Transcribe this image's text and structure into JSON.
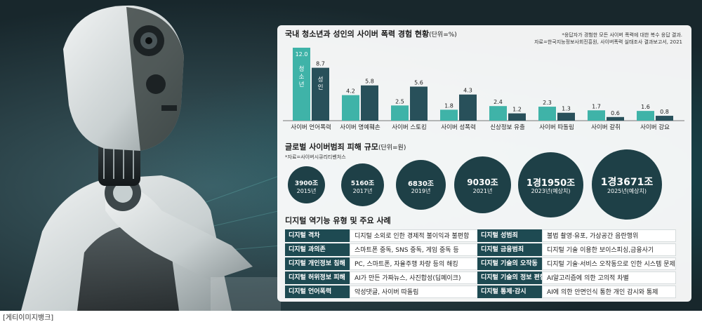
{
  "credit": "[게티이미지뱅크]",
  "colors": {
    "teen": "#3fb3a8",
    "adult": "#28505a",
    "circle": "#1e4047",
    "table_key": "#1e4a52"
  },
  "section1": {
    "title": "국내 청소년과 성인의 사이버 폭력 경험 현황",
    "unit": "(단위=%)",
    "note1": "*응답자가 경험한 모든 사이버 폭력에 대한 복수 응답 결과.",
    "note2": "자료=한국지능정보사회진흥원, 사이버폭력 실태조사 결과보고서, 2021"
  },
  "chart_data": [
    {
      "type": "bar",
      "title": "국내 청소년과 성인의 사이버 폭력 경험 현황",
      "unit": "(단위=%)",
      "categories": [
        "사이버 언어폭력",
        "사이버 명예훼손",
        "사이버 스토킹",
        "사이버 성폭력",
        "신상정보 유출",
        "사이버 따돌림",
        "사이버 갈취",
        "사이버 강요"
      ],
      "series": [
        {
          "name": "청소년",
          "values": [
            12.0,
            4.2,
            2.5,
            1.8,
            2.4,
            2.3,
            1.7,
            1.6
          ]
        },
        {
          "name": "성인",
          "values": [
            8.7,
            5.8,
            5.6,
            4.3,
            1.2,
            1.3,
            0.6,
            0.8
          ]
        }
      ],
      "value_labels": [
        [
          "12.0",
          "4.2",
          "2.5",
          "1.8",
          "2.4",
          "2.3",
          "1.7",
          "1.6"
        ],
        [
          "8.7",
          "5.8",
          "5.6",
          "4.3",
          "1.2",
          "1.3",
          "0.6",
          "0.8"
        ]
      ],
      "legend_inside": [
        "청소년",
        "성인"
      ],
      "ylim": [
        0,
        12
      ],
      "grid": false
    },
    {
      "type": "bubble",
      "title": "글로벌 사이버범죄 피해 규모",
      "unit": "(단위=원)",
      "source": "*자료=사이버시큐리티벤처스",
      "points": [
        {
          "year": "2015년",
          "label": "3900조",
          "value": 3900
        },
        {
          "year": "2017년",
          "label": "5160조",
          "value": 5160
        },
        {
          "year": "2019년",
          "label": "6830조",
          "value": 6830
        },
        {
          "year": "2021년",
          "label": "9030조",
          "value": 9030
        },
        {
          "year": "2023년(예상치)",
          "label": "1경1950조",
          "value": 11950
        },
        {
          "year": "2025년(예상치)",
          "label": "1경3671조",
          "value": 13671
        }
      ]
    }
  ],
  "section3": {
    "title": "디지털 역기능 유형 및 주요 사례",
    "left": [
      {
        "k": "디지털 격차",
        "d": "디지털 소외로 인한 경제적 불이익과 불편함"
      },
      {
        "k": "디지털 과의존",
        "d": "스마트폰 중독, SNS 중독, 게임 중독 등"
      },
      {
        "k": "디지털 개인정보 침해",
        "d": "PC, 스마트폰, 자율주행 차량 등의 해킹"
      },
      {
        "k": "디지털 허위정보 피해",
        "d": "AI가 만든 가짜뉴스, 사진합성(딥페이크)"
      },
      {
        "k": "디지털 언어폭력",
        "d": "악성댓글, 사이버 따돌림"
      }
    ],
    "right": [
      {
        "k": "디지털 성범죄",
        "d": "불법 촬영·유포, 가상공간 음란행위"
      },
      {
        "k": "디지털 금융범죄",
        "d": "디지털 기술 이용한 보이스피싱,금융사기"
      },
      {
        "k": "디지털 기술의 오작동",
        "d": "디지털 기술·서비스 오작동으로 인한 시스템 문제"
      },
      {
        "k": "디지털 기술의 정보 편향",
        "d": "AI알고리즘에 의한 고의적 차별"
      },
      {
        "k": "디지털 통제·감시",
        "d": "AI에 의한 안면인식 통한 개인 감시와 통제"
      }
    ]
  }
}
